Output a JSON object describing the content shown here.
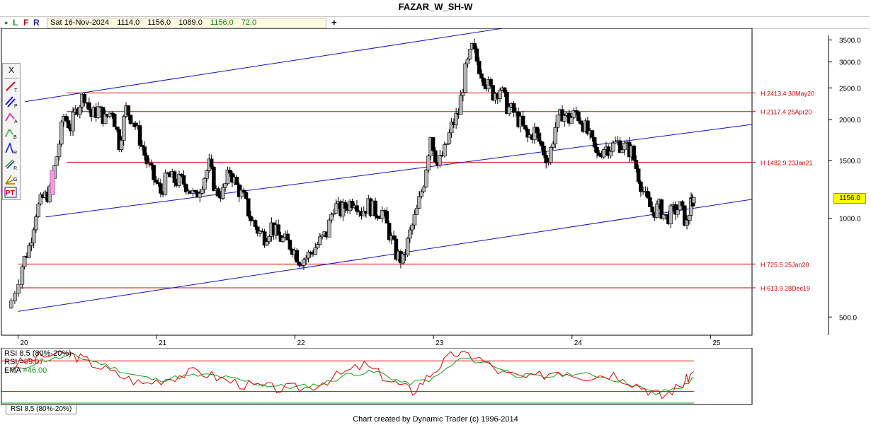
{
  "title": "FAZAR_W_SH-W",
  "info_bar": {
    "controls": [
      {
        "label": "●",
        "color": "#2a8a2a"
      },
      {
        "label": "L",
        "color": "#2a8a2a"
      },
      {
        "label": "F",
        "color": "#b00000"
      },
      {
        "label": "R",
        "color": "#1a1aa0"
      }
    ],
    "date": "Sat 16-Nov-2024",
    "open": "1114.0",
    "high": "1156.0",
    "low": "1089.0",
    "close": "1156.0",
    "change": "72.0",
    "add_button": "+"
  },
  "toolbar": {
    "close_label": "X",
    "tools": [
      {
        "icon": "trendline-tool-icon",
        "letter": "T"
      },
      {
        "icon": "parallel-channel-tool-icon",
        "letter": "P"
      },
      {
        "icon": "ratio-tool-icon",
        "letter": "A"
      },
      {
        "icon": "ratio-b-tool-icon",
        "letter": "B"
      },
      {
        "icon": "retracement-tool-icon",
        "letter": "R"
      },
      {
        "icon": "fan-tool-icon",
        "letter": "R"
      },
      {
        "icon": "gann-tool-icon",
        "letter": "G"
      },
      {
        "icon": "pt-tool-icon",
        "letter": "PT"
      }
    ]
  },
  "last_price_tag": "1156.0",
  "footer": "Chart created by Dynamic Trader  (c) 1996-2014",
  "rsi_panel": {
    "title": "RSI 8,5 (80%-20%)",
    "rsi_label": "RSI =",
    "rsi_value": "59.07",
    "ema_label": "EMA =",
    "ema_value": "46.00",
    "tab_label": "RSI 8,5 (80%-20%)",
    "rsi_color": "#e00000",
    "ema_color": "#10a010",
    "bands": [
      80,
      20
    ]
  },
  "colors": {
    "horizontal_line": "#dd0000",
    "channel_line": "#1010c0",
    "up_candle": "#b4b4b4",
    "down_candle": "#000000"
  },
  "chart_data": {
    "type": "candlestick",
    "title": "FAZAR_W_SH-W",
    "y_scale": "log",
    "ylim": [
      400,
      4000
    ],
    "y_ticks": [
      "3500.0",
      "3000.0",
      "2500.0",
      "2000.0",
      "1500.0",
      "1000.0",
      "500.0"
    ],
    "x_labels": [
      "20",
      "21",
      "22",
      "23",
      "24",
      "25"
    ],
    "x_range": [
      2019.9,
      2025.3
    ],
    "last_close": 1156.0,
    "horizontal_levels": [
      {
        "value": 2413.4,
        "label": "H 2413.4 30May20"
      },
      {
        "value": 2117.4,
        "label": "H 2117.4 25Apr20"
      },
      {
        "value": 1482.9,
        "label": "H 1482.9 23Jan21"
      },
      {
        "value": 725.5,
        "label": "H 725.5 25Jan20"
      },
      {
        "value": 613.9,
        "label": "H 613.9 28Dec19"
      }
    ],
    "channel_lines": [
      {
        "x": [
          2020.05,
          2022.95
        ],
        "y": [
          2270,
          3500
        ],
        "extend_to": 2024.3
      },
      {
        "x": [
          2020.2,
          2023.2
        ],
        "y": [
          1010,
          1480
        ],
        "extend_to": 2025.3
      },
      {
        "x": [
          2020.0,
          2022.9
        ],
        "y": [
          520,
          800
        ],
        "extend_to": 2025.3
      }
    ],
    "weekly_closes": [
      [
        2019.95,
        560
      ],
      [
        2020.03,
        720
      ],
      [
        2020.08,
        820
      ],
      [
        2020.13,
        1050
      ],
      [
        2020.18,
        1150
      ],
      [
        2020.23,
        1200
      ],
      [
        2020.28,
        1550
      ],
      [
        2020.33,
        2050
      ],
      [
        2020.38,
        1900
      ],
      [
        2020.43,
        2200
      ],
      [
        2020.48,
        2390
      ],
      [
        2020.53,
        2050
      ],
      [
        2020.58,
        2150
      ],
      [
        2020.63,
        2000
      ],
      [
        2020.68,
        2150
      ],
      [
        2020.73,
        1700
      ],
      [
        2020.78,
        2150
      ],
      [
        2020.83,
        2000
      ],
      [
        2020.88,
        1750
      ],
      [
        2020.93,
        1480
      ],
      [
        2020.98,
        1320
      ],
      [
        2021.03,
        1200
      ],
      [
        2021.08,
        1350
      ],
      [
        2021.13,
        1300
      ],
      [
        2021.18,
        1300
      ],
      [
        2021.23,
        1250
      ],
      [
        2021.28,
        1150
      ],
      [
        2021.33,
        1300
      ],
      [
        2021.38,
        1450
      ],
      [
        2021.43,
        1200
      ],
      [
        2021.48,
        1200
      ],
      [
        2021.53,
        1400
      ],
      [
        2021.58,
        1250
      ],
      [
        2021.63,
        1150
      ],
      [
        2021.68,
        1000
      ],
      [
        2021.73,
        920
      ],
      [
        2021.78,
        880
      ],
      [
        2021.83,
        950
      ],
      [
        2021.88,
        880
      ],
      [
        2021.93,
        850
      ],
      [
        2021.98,
        820
      ],
      [
        2022.03,
        750
      ],
      [
        2022.08,
        760
      ],
      [
        2022.13,
        800
      ],
      [
        2022.18,
        850
      ],
      [
        2022.23,
        900
      ],
      [
        2022.28,
        1100
      ],
      [
        2022.33,
        1050
      ],
      [
        2022.38,
        1100
      ],
      [
        2022.43,
        1150
      ],
      [
        2022.48,
        1050
      ],
      [
        2022.53,
        1100
      ],
      [
        2022.58,
        1050
      ],
      [
        2022.63,
        1050
      ],
      [
        2022.68,
        900
      ],
      [
        2022.73,
        780
      ],
      [
        2022.78,
        740
      ],
      [
        2022.83,
        900
      ],
      [
        2022.88,
        1050
      ],
      [
        2022.93,
        1300
      ],
      [
        2022.98,
        1800
      ],
      [
        2023.03,
        1450
      ],
      [
        2023.08,
        1600
      ],
      [
        2023.13,
        1900
      ],
      [
        2023.18,
        2100
      ],
      [
        2023.23,
        2800
      ],
      [
        2023.28,
        3300
      ],
      [
        2023.33,
        2900
      ],
      [
        2023.38,
        2600
      ],
      [
        2023.43,
        2400
      ],
      [
        2023.48,
        2500
      ],
      [
        2023.53,
        2200
      ],
      [
        2023.58,
        2100
      ],
      [
        2023.63,
        1950
      ],
      [
        2023.68,
        1750
      ],
      [
        2023.73,
        1850
      ],
      [
        2023.78,
        1650
      ],
      [
        2023.83,
        1500
      ],
      [
        2023.88,
        1900
      ],
      [
        2023.93,
        2100
      ],
      [
        2023.98,
        2000
      ],
      [
        2024.03,
        2100
      ],
      [
        2024.08,
        1950
      ],
      [
        2024.13,
        1750
      ],
      [
        2024.18,
        1550
      ],
      [
        2024.23,
        1650
      ],
      [
        2024.28,
        1650
      ],
      [
        2024.33,
        1700
      ],
      [
        2024.38,
        1650
      ],
      [
        2024.43,
        1600
      ],
      [
        2024.48,
        1350
      ],
      [
        2024.53,
        1150
      ],
      [
        2024.58,
        1050
      ],
      [
        2024.63,
        1080
      ],
      [
        2024.68,
        1000
      ],
      [
        2024.73,
        1050
      ],
      [
        2024.78,
        1080
      ],
      [
        2024.83,
        960
      ],
      [
        2024.86,
        1100
      ],
      [
        2024.88,
        1156
      ]
    ],
    "rsi_series": {
      "name": "RSI",
      "x": [
        2019.95,
        2020.15,
        2020.35,
        2020.5,
        2020.7,
        2020.9,
        2021.1,
        2021.3,
        2021.5,
        2021.7,
        2021.9,
        2022.1,
        2022.3,
        2022.5,
        2022.7,
        2022.85,
        2023.0,
        2023.15,
        2023.3,
        2023.5,
        2023.7,
        2023.9,
        2024.1,
        2024.3,
        2024.5,
        2024.65,
        2024.8,
        2024.88
      ],
      "values": [
        70,
        88,
        96,
        80,
        55,
        35,
        48,
        60,
        42,
        30,
        25,
        28,
        50,
        72,
        40,
        20,
        60,
        95,
        90,
        55,
        45,
        62,
        50,
        55,
        30,
        10,
        35,
        59.07
      ]
    },
    "ema_series": {
      "name": "EMA",
      "x": [
        2019.95,
        2020.2,
        2020.4,
        2020.6,
        2020.8,
        2021.0,
        2021.2,
        2021.4,
        2021.6,
        2021.8,
        2022.0,
        2022.2,
        2022.4,
        2022.6,
        2022.8,
        2023.0,
        2023.2,
        2023.4,
        2023.6,
        2023.8,
        2024.0,
        2024.2,
        2024.4,
        2024.6,
        2024.8,
        2024.88
      ],
      "values": [
        60,
        82,
        90,
        75,
        55,
        42,
        50,
        52,
        42,
        32,
        28,
        35,
        55,
        58,
        35,
        45,
        85,
        75,
        52,
        48,
        56,
        50,
        38,
        15,
        30,
        46.0
      ]
    },
    "rsi_ylim": [
      0,
      100
    ]
  }
}
